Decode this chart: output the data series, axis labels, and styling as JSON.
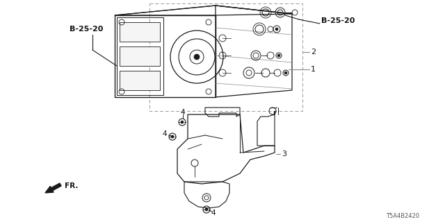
{
  "background_color": "#ffffff",
  "line_color": "#1a1a1a",
  "gray_color": "#888888",
  "text_color": "#111111",
  "diagram_id": "T5A4B2420",
  "labels": {
    "b25_20_left": "B-25-20",
    "b25_20_right": "B-25-20",
    "1": "1",
    "2": "2",
    "3": "3",
    "4": "4",
    "fr": "FR."
  },
  "figsize": [
    6.4,
    3.2
  ],
  "dpi": 100
}
